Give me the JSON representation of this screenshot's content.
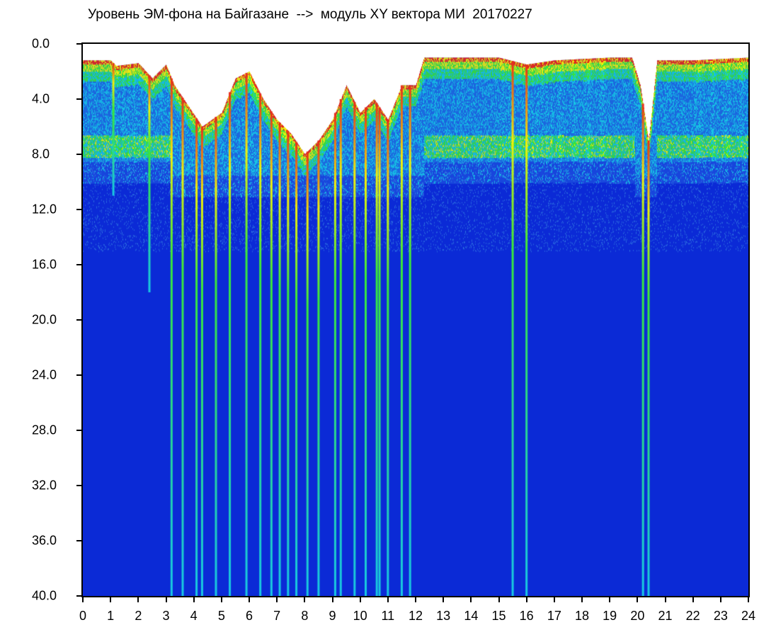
{
  "title": "Уровень ЭМ-фона на Байгазане  -->  модуль XY вектора МИ  20170227",
  "chart_data": {
    "type": "heatmap",
    "title": "Уровень ЭМ-фона на Байгазане  -->  модуль XY вектора МИ  20170227",
    "xlabel": "",
    "ylabel": "",
    "xlim": [
      0,
      24
    ],
    "ylim": [
      0,
      40
    ],
    "y_inverted": true,
    "x_ticks": [
      "0",
      "1",
      "2",
      "3",
      "4",
      "5",
      "6",
      "7",
      "8",
      "9",
      "10",
      "11",
      "12",
      "13",
      "14",
      "15",
      "16",
      "17",
      "18",
      "19",
      "20",
      "21",
      "22",
      "23",
      "24"
    ],
    "y_ticks": [
      "0.0",
      "4.0",
      "8.0",
      "12.0",
      "16.0",
      "20.0",
      "24.0",
      "28.0",
      "32.0",
      "36.0",
      "40.0"
    ],
    "colors": {
      "background": "#0b2ad6",
      "cyan": "#18c8e6",
      "green": "#39e83a",
      "yellow": "#f2f20a",
      "red": "#e82a1a",
      "empty": "#ffffff"
    },
    "upper_envelope": [
      [
        0.0,
        1.2
      ],
      [
        1.0,
        1.2
      ],
      [
        1.2,
        1.6
      ],
      [
        2.0,
        1.4
      ],
      [
        2.5,
        2.5
      ],
      [
        3.0,
        1.5
      ],
      [
        3.3,
        3.0
      ],
      [
        3.8,
        4.5
      ],
      [
        4.3,
        6.0
      ],
      [
        5.0,
        5.0
      ],
      [
        5.5,
        2.5
      ],
      [
        6.0,
        2.0
      ],
      [
        6.5,
        4.0
      ],
      [
        7.0,
        5.5
      ],
      [
        7.5,
        6.5
      ],
      [
        8.0,
        8.0
      ],
      [
        8.5,
        7.0
      ],
      [
        9.0,
        5.5
      ],
      [
        9.5,
        3.0
      ],
      [
        10.0,
        5.0
      ],
      [
        10.5,
        4.0
      ],
      [
        11.0,
        5.5
      ],
      [
        11.5,
        3.0
      ],
      [
        12.0,
        3.0
      ],
      [
        12.3,
        1.0
      ],
      [
        15.0,
        1.0
      ],
      [
        16.0,
        1.5
      ],
      [
        17.0,
        1.2
      ],
      [
        19.0,
        1.0
      ],
      [
        19.8,
        1.0
      ],
      [
        20.1,
        3.0
      ],
      [
        20.4,
        7.0
      ],
      [
        20.7,
        1.2
      ],
      [
        22.0,
        1.2
      ],
      [
        24.0,
        1.0
      ]
    ],
    "spikes": [
      {
        "hour": 1.1,
        "depth": 11
      },
      {
        "hour": 2.4,
        "depth": 18
      },
      {
        "hour": 3.2,
        "depth": 40
      },
      {
        "hour": 3.6,
        "depth": 40
      },
      {
        "hour": 4.1,
        "depth": 40
      },
      {
        "hour": 4.3,
        "depth": 40
      },
      {
        "hour": 4.8,
        "depth": 40
      },
      {
        "hour": 5.3,
        "depth": 40
      },
      {
        "hour": 5.9,
        "depth": 40
      },
      {
        "hour": 6.4,
        "depth": 40
      },
      {
        "hour": 6.8,
        "depth": 40
      },
      {
        "hour": 7.1,
        "depth": 40
      },
      {
        "hour": 7.4,
        "depth": 40
      },
      {
        "hour": 7.7,
        "depth": 40
      },
      {
        "hour": 8.1,
        "depth": 40
      },
      {
        "hour": 8.5,
        "depth": 40
      },
      {
        "hour": 9.1,
        "depth": 40
      },
      {
        "hour": 9.3,
        "depth": 40
      },
      {
        "hour": 9.8,
        "depth": 40
      },
      {
        "hour": 10.2,
        "depth": 40
      },
      {
        "hour": 10.6,
        "depth": 40
      },
      {
        "hour": 10.7,
        "depth": 40
      },
      {
        "hour": 11.0,
        "depth": 40
      },
      {
        "hour": 11.5,
        "depth": 40
      },
      {
        "hour": 11.8,
        "depth": 40
      },
      {
        "hour": 15.5,
        "depth": 40
      },
      {
        "hour": 16.0,
        "depth": 40
      },
      {
        "hour": 20.2,
        "depth": 40
      },
      {
        "hour": 20.4,
        "depth": 40
      }
    ]
  }
}
